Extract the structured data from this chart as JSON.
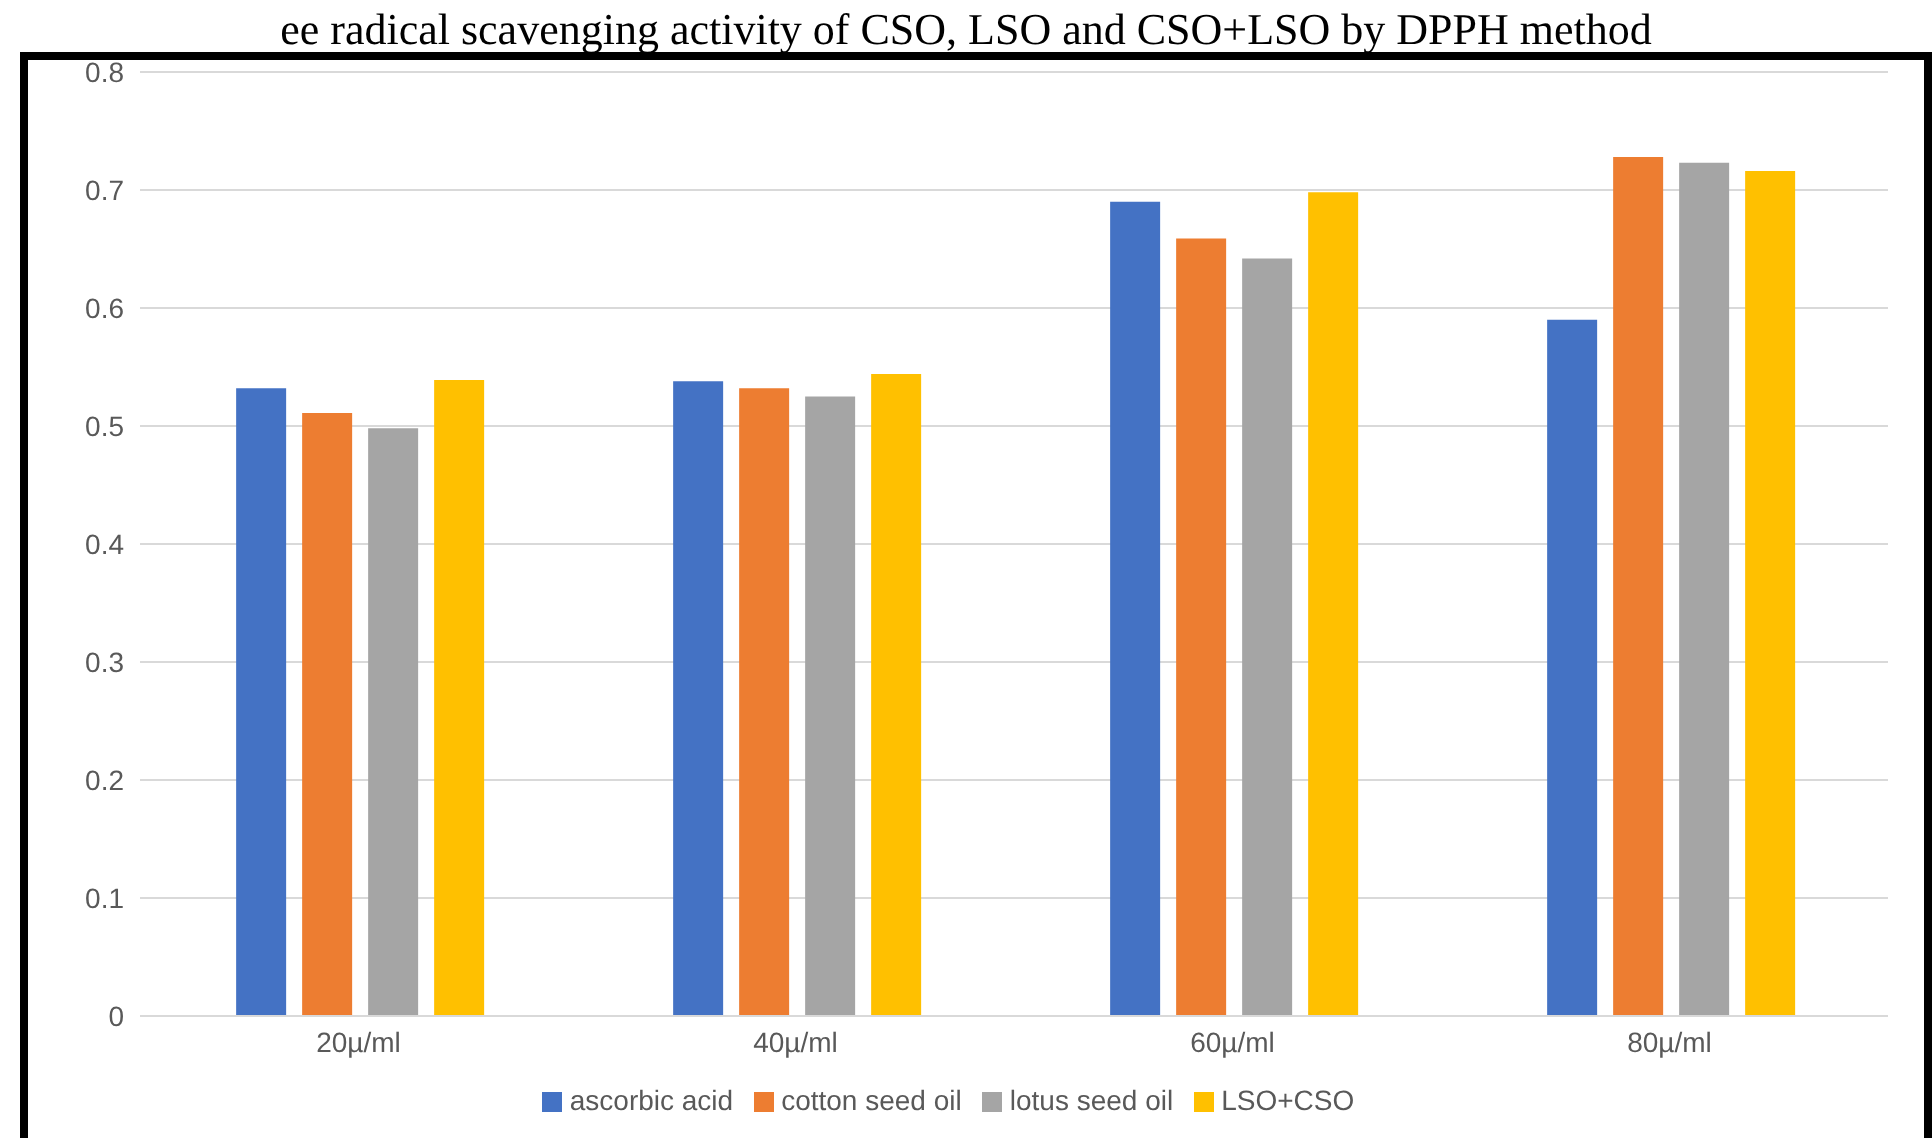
{
  "chart_data": {
    "type": "bar",
    "title": "ee radical scavenging activity of CSO, LSO and CSO+LSO by DPPH method",
    "categories": [
      "20µ/ml",
      "40µ/ml",
      "60µ/ml",
      "80µ/ml"
    ],
    "series": [
      {
        "name": "ascorbic acid",
        "color": "#4472c4",
        "values": [
          0.532,
          0.538,
          0.69,
          0.59
        ]
      },
      {
        "name": "cotton seed oil",
        "color": "#ed7d31",
        "values": [
          0.511,
          0.532,
          0.659,
          0.728
        ]
      },
      {
        "name": "lotus seed oil",
        "color": "#a5a5a5",
        "values": [
          0.498,
          0.525,
          0.642,
          0.723
        ]
      },
      {
        "name": "LSO+CSO",
        "color": "#ffc000",
        "values": [
          0.539,
          0.544,
          0.698,
          0.716
        ]
      }
    ],
    "ylim": [
      0,
      0.8
    ],
    "yticks": [
      0,
      0.1,
      0.2,
      0.3,
      0.4,
      0.5,
      0.6,
      0.7,
      0.8
    ],
    "grid": "y",
    "legend": "bottom"
  }
}
